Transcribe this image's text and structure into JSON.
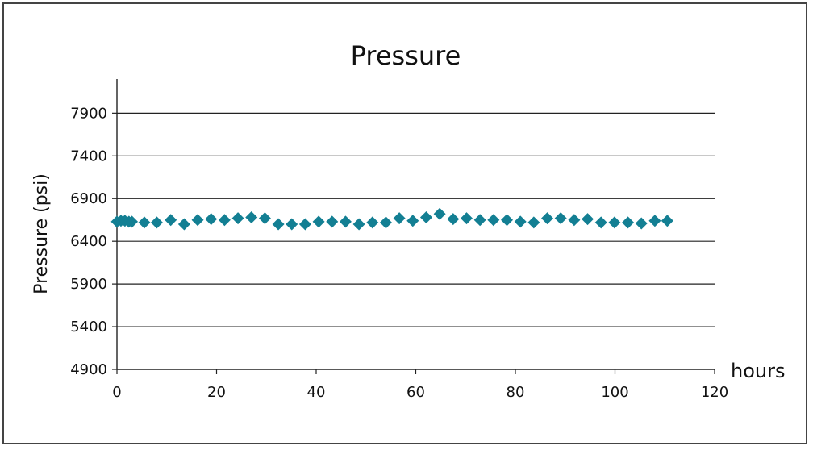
{
  "chart_data": {
    "type": "scatter",
    "title": "Pressure",
    "ylabel": "Pressure (psi)",
    "xlabel": "hours",
    "xlim": [
      0,
      120
    ],
    "ylim": [
      4900,
      8300
    ],
    "xticks": [
      0,
      20,
      40,
      60,
      80,
      100,
      120
    ],
    "yticks": [
      4900,
      5400,
      5900,
      6400,
      6900,
      7400,
      7900
    ],
    "grid": "horizontal",
    "marker": "diamond",
    "color": "#137f93",
    "series": [
      {
        "x": [
          0,
          0.8,
          1.6,
          2.4,
          3.0,
          5.5,
          8.0,
          10.8,
          13.5,
          16.2,
          18.9,
          21.6,
          24.3,
          27.0,
          29.7,
          32.4,
          35.1,
          37.8,
          40.5,
          43.2,
          45.9,
          48.6,
          51.3,
          54.0,
          56.7,
          59.4,
          62.1,
          64.8,
          67.5,
          70.2,
          72.9,
          75.6,
          78.3,
          81.0,
          83.7,
          86.4,
          89.1,
          91.8,
          94.5,
          97.2,
          99.9,
          102.6,
          105.3,
          108.0,
          110.5
        ],
        "y": [
          6630,
          6640,
          6640,
          6630,
          6630,
          6620,
          6620,
          6650,
          6600,
          6650,
          6660,
          6650,
          6670,
          6680,
          6670,
          6600,
          6600,
          6600,
          6630,
          6630,
          6630,
          6600,
          6620,
          6620,
          6670,
          6640,
          6680,
          6720,
          6660,
          6670,
          6650,
          6650,
          6650,
          6630,
          6620,
          6670,
          6670,
          6650,
          6660,
          6620,
          6620,
          6620,
          6610,
          6640,
          6640
        ]
      }
    ]
  }
}
